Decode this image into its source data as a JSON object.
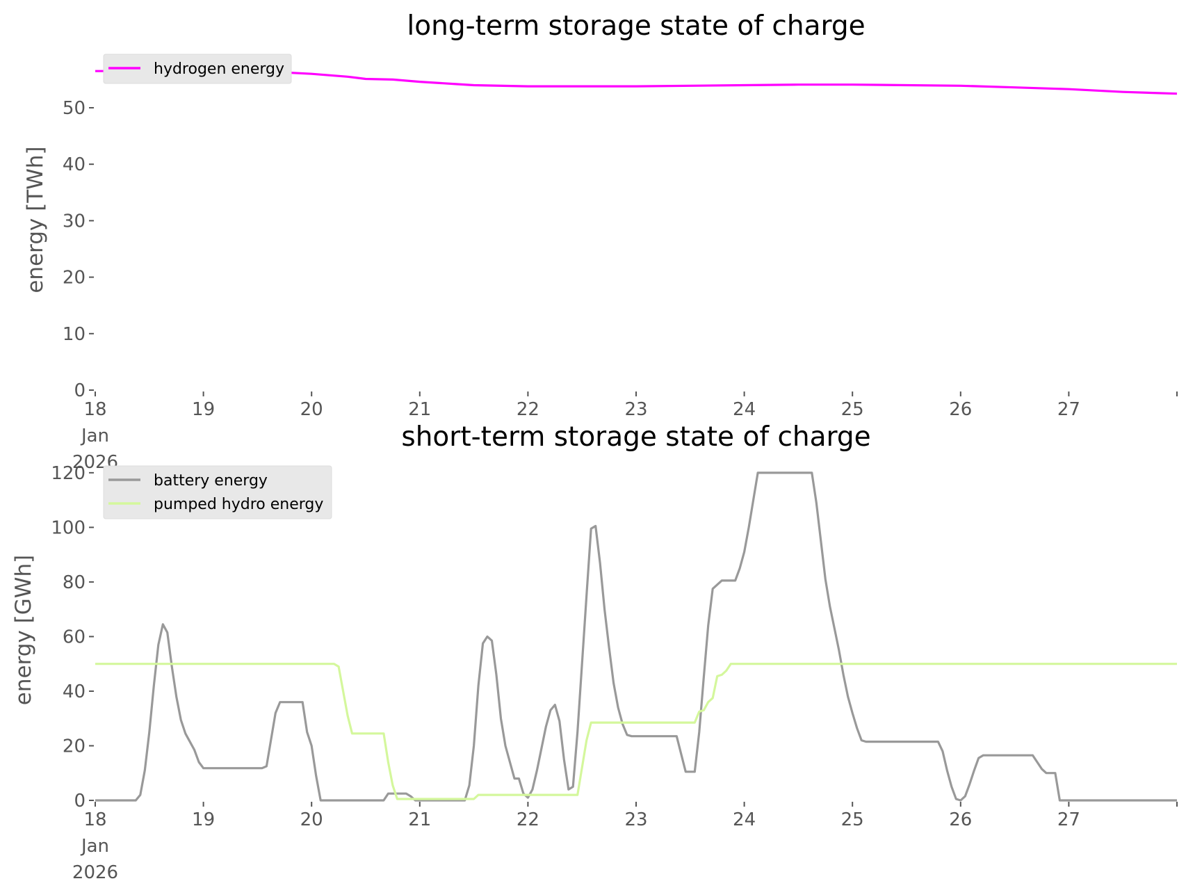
{
  "chart_data": [
    {
      "type": "line",
      "title": "long-term storage state of charge",
      "xlabel": "",
      "ylabel": "energy [TWh]",
      "x_range": [
        "2026-01-18",
        "2026-01-28"
      ],
      "x_ticks": [
        {
          "date": "2026-01-18",
          "label": "18",
          "sub": [
            "Jan",
            "2026"
          ]
        },
        {
          "date": "2026-01-19",
          "label": "19"
        },
        {
          "date": "2026-01-20",
          "label": "20"
        },
        {
          "date": "2026-01-21",
          "label": "21"
        },
        {
          "date": "2026-01-22",
          "label": "22"
        },
        {
          "date": "2026-01-23",
          "label": "23"
        },
        {
          "date": "2026-01-24",
          "label": "24"
        },
        {
          "date": "2026-01-25",
          "label": "25"
        },
        {
          "date": "2026-01-26",
          "label": "26"
        },
        {
          "date": "2026-01-27",
          "label": "27"
        },
        {
          "date": "2026-01-28",
          "label": ""
        }
      ],
      "ylim": [
        0,
        58
      ],
      "y_ticks": [
        0,
        10,
        20,
        30,
        40,
        50
      ],
      "grid": false,
      "legend": "top-left",
      "series": [
        {
          "name": "hydrogen energy",
          "color": "#ff00ff",
          "points": [
            [
              "2026-01-18 00:00",
              56.5
            ],
            [
              "2026-01-18 12:00",
              56.5
            ],
            [
              "2026-01-19 00:00",
              56.5
            ],
            [
              "2026-01-19 12:00",
              56.5
            ],
            [
              "2026-01-20 00:00",
              56.0
            ],
            [
              "2026-01-20 08:00",
              55.5
            ],
            [
              "2026-01-20 12:00",
              55.1
            ],
            [
              "2026-01-20 18:00",
              55.0
            ],
            [
              "2026-01-21 00:00",
              54.6
            ],
            [
              "2026-01-21 08:00",
              54.2
            ],
            [
              "2026-01-21 12:00",
              54.0
            ],
            [
              "2026-01-22 00:00",
              53.8
            ],
            [
              "2026-01-23 00:00",
              53.8
            ],
            [
              "2026-01-24 00:00",
              54.0
            ],
            [
              "2026-01-24 12:00",
              54.1
            ],
            [
              "2026-01-25 00:00",
              54.1
            ],
            [
              "2026-01-26 00:00",
              53.9
            ],
            [
              "2026-01-26 12:00",
              53.6
            ],
            [
              "2026-01-27 00:00",
              53.3
            ],
            [
              "2026-01-27 12:00",
              52.8
            ],
            [
              "2026-01-28 00:00",
              52.5
            ]
          ]
        }
      ]
    },
    {
      "type": "line",
      "title": "short-term storage state of charge",
      "xlabel": "",
      "ylabel": "energy [GWh]",
      "x_range": [
        "2026-01-18",
        "2026-01-28"
      ],
      "x_ticks": [
        {
          "date": "2026-01-18",
          "label": "18",
          "sub": [
            "Jan",
            "2026"
          ]
        },
        {
          "date": "2026-01-19",
          "label": "19"
        },
        {
          "date": "2026-01-20",
          "label": "20"
        },
        {
          "date": "2026-01-21",
          "label": "21"
        },
        {
          "date": "2026-01-22",
          "label": "22"
        },
        {
          "date": "2026-01-23",
          "label": "23"
        },
        {
          "date": "2026-01-24",
          "label": "24"
        },
        {
          "date": "2026-01-25",
          "label": "25"
        },
        {
          "date": "2026-01-26",
          "label": "26"
        },
        {
          "date": "2026-01-27",
          "label": "27"
        },
        {
          "date": "2026-01-28",
          "label": ""
        }
      ],
      "ylim": [
        0,
        122
      ],
      "y_ticks": [
        0,
        20,
        40,
        60,
        80,
        100,
        120
      ],
      "grid": false,
      "legend": "top-left",
      "series": [
        {
          "name": "battery energy",
          "color": "#999999",
          "points": [
            [
              "2026-01-18 00:00",
              0
            ],
            [
              "2026-01-18 09:00",
              0
            ],
            [
              "2026-01-18 10:00",
              2
            ],
            [
              "2026-01-18 11:00",
              11
            ],
            [
              "2026-01-18 12:00",
              25
            ],
            [
              "2026-01-18 13:00",
              42
            ],
            [
              "2026-01-18 14:00",
              57
            ],
            [
              "2026-01-18 15:00",
              64.5
            ],
            [
              "2026-01-18 16:00",
              61.5
            ],
            [
              "2026-01-18 17:00",
              49
            ],
            [
              "2026-01-18 18:00",
              38
            ],
            [
              "2026-01-18 19:00",
              29.5
            ],
            [
              "2026-01-18 20:00",
              24.5
            ],
            [
              "2026-01-18 22:00",
              18.5
            ],
            [
              "2026-01-18 23:00",
              14
            ],
            [
              "2026-01-19 00:00",
              11.8
            ],
            [
              "2026-01-19 13:00",
              11.8
            ],
            [
              "2026-01-19 14:00",
              12.5
            ],
            [
              "2026-01-19 16:00",
              32
            ],
            [
              "2026-01-19 17:00",
              36
            ],
            [
              "2026-01-19 22:00",
              36
            ],
            [
              "2026-01-19 23:00",
              25
            ],
            [
              "2026-01-20 00:00",
              20
            ],
            [
              "2026-01-20 01:00",
              9
            ],
            [
              "2026-01-20 02:00",
              0
            ],
            [
              "2026-01-20 16:00",
              0
            ],
            [
              "2026-01-20 17:00",
              2.5
            ],
            [
              "2026-01-20 21:00",
              2.5
            ],
            [
              "2026-01-20 22:00",
              1.5
            ],
            [
              "2026-01-20 23:00",
              0
            ],
            [
              "2026-01-21 10:00",
              0
            ],
            [
              "2026-01-21 11:00",
              5.5
            ],
            [
              "2026-01-21 12:00",
              20
            ],
            [
              "2026-01-21 13:00",
              42
            ],
            [
              "2026-01-21 14:00",
              57.5
            ],
            [
              "2026-01-21 15:00",
              60
            ],
            [
              "2026-01-21 16:00",
              58.5
            ],
            [
              "2026-01-21 17:00",
              46
            ],
            [
              "2026-01-21 18:00",
              30
            ],
            [
              "2026-01-21 19:00",
              20
            ],
            [
              "2026-01-21 21:00",
              8
            ],
            [
              "2026-01-21 22:00",
              8
            ],
            [
              "2026-01-21 23:00",
              2.5
            ],
            [
              "2026-01-22 00:00",
              1
            ],
            [
              "2026-01-22 01:00",
              4
            ],
            [
              "2026-01-22 02:00",
              11
            ],
            [
              "2026-01-22 04:00",
              27
            ],
            [
              "2026-01-22 05:00",
              33
            ],
            [
              "2026-01-22 06:00",
              35
            ],
            [
              "2026-01-22 07:00",
              29
            ],
            [
              "2026-01-22 08:00",
              15
            ],
            [
              "2026-01-22 09:00",
              4
            ],
            [
              "2026-01-22 10:00",
              5
            ],
            [
              "2026-01-22 11:00",
              25
            ],
            [
              "2026-01-22 12:00",
              50
            ],
            [
              "2026-01-22 13:00",
              75
            ],
            [
              "2026-01-22 14:00",
              99.5
            ],
            [
              "2026-01-22 15:00",
              100.5
            ],
            [
              "2026-01-22 16:00",
              87
            ],
            [
              "2026-01-22 17:00",
              70
            ],
            [
              "2026-01-22 18:00",
              56
            ],
            [
              "2026-01-22 19:00",
              43
            ],
            [
              "2026-01-22 20:00",
              34
            ],
            [
              "2026-01-22 21:00",
              28
            ],
            [
              "2026-01-22 22:00",
              24
            ],
            [
              "2026-01-22 23:00",
              23.5
            ],
            [
              "2026-01-23 09:00",
              23.5
            ],
            [
              "2026-01-23 10:00",
              17
            ],
            [
              "2026-01-23 11:00",
              10.5
            ],
            [
              "2026-01-23 13:00",
              10.5
            ],
            [
              "2026-01-23 14:00",
              25
            ],
            [
              "2026-01-23 15:00",
              45
            ],
            [
              "2026-01-23 16:00",
              64
            ],
            [
              "2026-01-23 17:00",
              77.5
            ],
            [
              "2026-01-23 19:00",
              80.5
            ],
            [
              "2026-01-23 22:00",
              80.5
            ],
            [
              "2026-01-23 23:00",
              85
            ],
            [
              "2026-01-24 00:00",
              91
            ],
            [
              "2026-01-24 01:00",
              100
            ],
            [
              "2026-01-24 02:00",
              110
            ],
            [
              "2026-01-24 03:00",
              120
            ],
            [
              "2026-01-24 15:00",
              120
            ],
            [
              "2026-01-24 16:00",
              109
            ],
            [
              "2026-01-24 17:00",
              95
            ],
            [
              "2026-01-24 18:00",
              81
            ],
            [
              "2026-01-24 19:00",
              71
            ],
            [
              "2026-01-24 20:00",
              63
            ],
            [
              "2026-01-24 21:00",
              55
            ],
            [
              "2026-01-24 22:00",
              46
            ],
            [
              "2026-01-24 23:00",
              38
            ],
            [
              "2026-01-25 00:00",
              32
            ],
            [
              "2026-01-25 01:00",
              26.5
            ],
            [
              "2026-01-25 02:00",
              22
            ],
            [
              "2026-01-25 03:00",
              21.5
            ],
            [
              "2026-01-25 19:00",
              21.5
            ],
            [
              "2026-01-25 20:00",
              18
            ],
            [
              "2026-01-25 21:00",
              11
            ],
            [
              "2026-01-25 22:00",
              5
            ],
            [
              "2026-01-25 23:00",
              0.5
            ],
            [
              "2026-01-26 00:00",
              0
            ],
            [
              "2026-01-26 01:00",
              1.5
            ],
            [
              "2026-01-26 02:00",
              6
            ],
            [
              "2026-01-26 03:00",
              11
            ],
            [
              "2026-01-26 04:00",
              15.5
            ],
            [
              "2026-01-26 05:00",
              16.5
            ],
            [
              "2026-01-26 15:00",
              16.5
            ],
            [
              "2026-01-26 16:00",
              16.5
            ],
            [
              "2026-01-26 17:00",
              14
            ],
            [
              "2026-01-26 18:00",
              11.5
            ],
            [
              "2026-01-26 19:00",
              10
            ],
            [
              "2026-01-26 21:00",
              10
            ],
            [
              "2026-01-26 22:00",
              0
            ],
            [
              "2026-01-28 00:00",
              0
            ]
          ]
        },
        {
          "name": "pumped hydro energy",
          "color": "#d4f79c",
          "points": [
            [
              "2026-01-18 00:00",
              50
            ],
            [
              "2026-01-20 05:00",
              50
            ],
            [
              "2026-01-20 06:00",
              49
            ],
            [
              "2026-01-20 07:00",
              40
            ],
            [
              "2026-01-20 08:00",
              31
            ],
            [
              "2026-01-20 09:00",
              24.5
            ],
            [
              "2026-01-20 15:00",
              24.5
            ],
            [
              "2026-01-20 16:00",
              24.5
            ],
            [
              "2026-01-20 17:00",
              14
            ],
            [
              "2026-01-20 18:00",
              5.5
            ],
            [
              "2026-01-20 19:00",
              0.5
            ],
            [
              "2026-01-21 11:00",
              0.5
            ],
            [
              "2026-01-21 12:00",
              0.5
            ],
            [
              "2026-01-21 13:00",
              2
            ],
            [
              "2026-01-22 10:00",
              2
            ],
            [
              "2026-01-22 11:00",
              2
            ],
            [
              "2026-01-22 12:00",
              12
            ],
            [
              "2026-01-22 13:00",
              22
            ],
            [
              "2026-01-22 14:00",
              28.5
            ],
            [
              "2026-01-23 12:00",
              28.5
            ],
            [
              "2026-01-23 13:00",
              28.5
            ],
            [
              "2026-01-23 14:00",
              32.5
            ],
            [
              "2026-01-23 15:00",
              33
            ],
            [
              "2026-01-23 16:00",
              36
            ],
            [
              "2026-01-23 17:00",
              37.5
            ],
            [
              "2026-01-23 18:00",
              45.5
            ],
            [
              "2026-01-23 19:00",
              46
            ],
            [
              "2026-01-23 20:00",
              47.5
            ],
            [
              "2026-01-23 21:00",
              50
            ],
            [
              "2026-01-28 00:00",
              50
            ]
          ]
        }
      ]
    }
  ]
}
